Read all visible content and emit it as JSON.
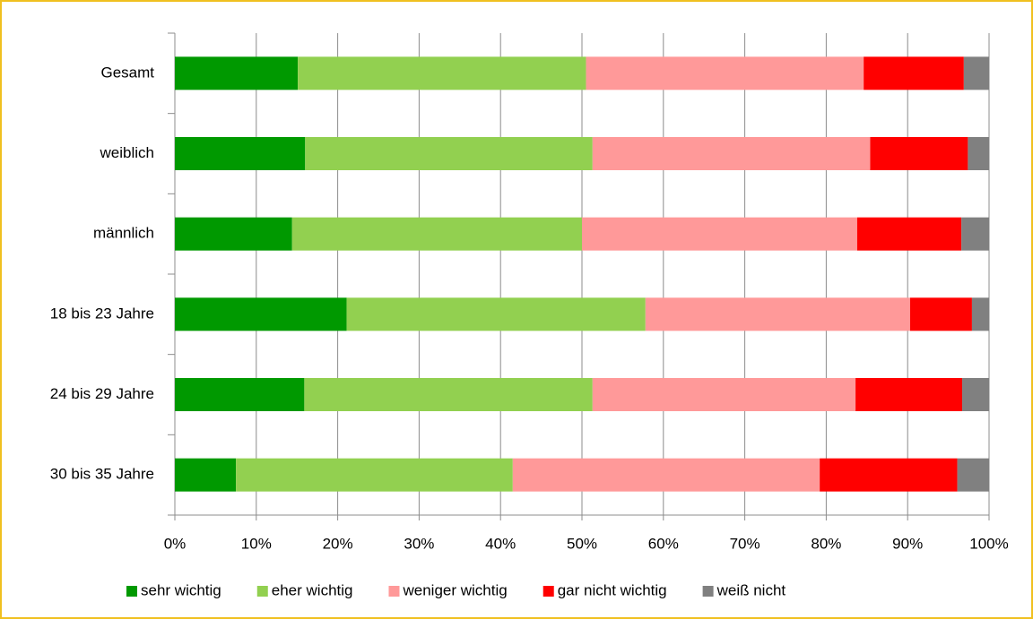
{
  "chart_data": {
    "type": "stacked_bar_horizontal",
    "categories": [
      "Gesamt",
      "weiblich",
      "männlich",
      "18 bis 23 Jahre",
      "24 bis 29 Jahre",
      "30 bis 35 Jahre"
    ],
    "series": [
      {
        "name": "sehr wichtig",
        "color": "#009900",
        "values": [
          15.1,
          16.0,
          14.4,
          21.1,
          15.9,
          7.5
        ]
      },
      {
        "name": "eher wichtig",
        "color": "#92d050",
        "values": [
          35.4,
          35.3,
          35.6,
          36.7,
          35.4,
          34.0
        ]
      },
      {
        "name": "weniger wichtig",
        "color": "#ff9999",
        "values": [
          34.1,
          34.1,
          33.8,
          32.5,
          32.3,
          37.7
        ]
      },
      {
        "name": "gar nicht wichtig",
        "color": "#ff0000",
        "values": [
          12.3,
          12.0,
          12.8,
          7.6,
          13.1,
          16.9
        ]
      },
      {
        "name": "weiß nicht",
        "color": "#808080",
        "values": [
          3.1,
          2.6,
          3.4,
          2.1,
          3.3,
          3.9
        ]
      }
    ],
    "xlim": [
      0,
      100
    ],
    "xticks": [
      {
        "value": 0,
        "label": "0%"
      },
      {
        "value": 10,
        "label": "10%"
      },
      {
        "value": 20,
        "label": "20%"
      },
      {
        "value": 30,
        "label": "30%"
      },
      {
        "value": 40,
        "label": "40%"
      },
      {
        "value": 50,
        "label": "50%"
      },
      {
        "value": 60,
        "label": "60%"
      },
      {
        "value": 70,
        "label": "70%"
      },
      {
        "value": 80,
        "label": "80%"
      },
      {
        "value": 90,
        "label": "90%"
      },
      {
        "value": 100,
        "label": "100%"
      }
    ],
    "grid": true,
    "legend": "bottom"
  }
}
